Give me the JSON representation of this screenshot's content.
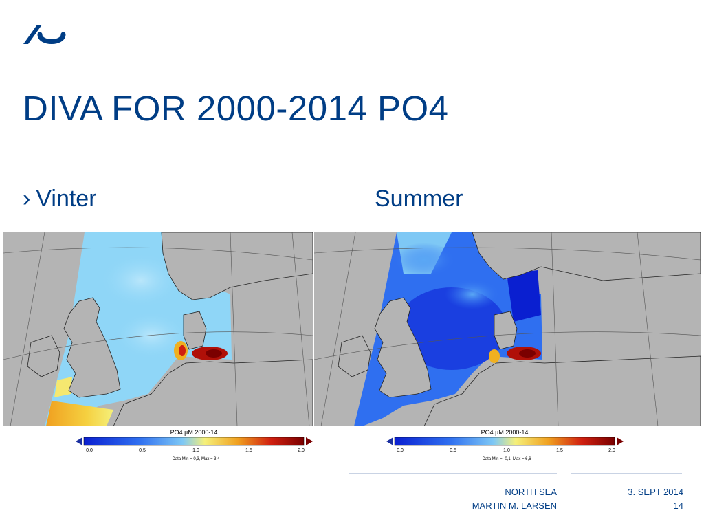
{
  "slide": {
    "title": "DIVA FOR 2000-2014 PO4",
    "bullet": "Vinter",
    "bullet_marker": "›",
    "right_label": "Summer"
  },
  "maps": [
    {
      "colorbar_title": "PO4 µM 2000-14",
      "ticks": [
        "0,0",
        "0,5",
        "1,0",
        "1,5",
        "2,0"
      ],
      "data_range": "Data Min = 0,3, Max = 3,4"
    },
    {
      "colorbar_title": "PO4 µM 2000-14",
      "ticks": [
        "0,0",
        "0,5",
        "1,0",
        "1,5",
        "2,0"
      ],
      "data_range": "Data Min = -0,1, Max = 6,6"
    }
  ],
  "footer": {
    "topic": "NORTH SEA",
    "author": "MARTIN M. LARSEN",
    "date": "3. SEPT 2014",
    "page": "14"
  },
  "colors": {
    "brand_blue": "#003d85",
    "land_gray": "#b4b4b4",
    "colorscale": [
      "#0a1fd0",
      "#2f6ff0",
      "#7ec8f5",
      "#f5f07a",
      "#f0a020",
      "#d02010",
      "#7a0000"
    ]
  },
  "icons": [
    "university-logo"
  ]
}
